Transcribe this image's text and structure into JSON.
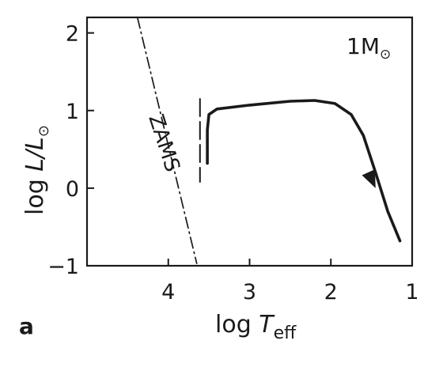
{
  "chart_data": {
    "type": "line",
    "panel_label": "a",
    "xlabel": {
      "prefix": "log ",
      "var": "T",
      "sub": "eff"
    },
    "ylabel": {
      "prefix": "log ",
      "var": "L/L",
      "sub": "⊙"
    },
    "xlim": [
      5,
      1
    ],
    "ylim": [
      -1,
      2.2
    ],
    "xticks": [
      4,
      3,
      2,
      1
    ],
    "yticks": [
      2,
      1,
      0,
      -1
    ],
    "xtick_labels": [
      "4",
      "3",
      "2",
      "1"
    ],
    "ytick_labels": [
      "2",
      "1",
      "0",
      "−1"
    ],
    "grid": false,
    "series": [
      {
        "style": "dash-dot",
        "color": "#1a1a1a",
        "x": [
          4.38,
          3.65
        ],
        "y": [
          2.2,
          -0.97
        ]
      },
      {
        "style": "dashed",
        "color": "#1a1a1a",
        "x": [
          3.61,
          3.61
        ],
        "y": [
          1.15,
          0.08
        ]
      },
      {
        "style": "solid",
        "color": "#1a1a1a",
        "arrow_at": [
          1.45,
          0.0
        ],
        "x": [
          3.52,
          3.52,
          3.5,
          3.4,
          3.0,
          2.5,
          2.2,
          1.95,
          1.75,
          1.6,
          1.45,
          1.3,
          1.15
        ],
        "y": [
          0.32,
          0.75,
          0.95,
          1.02,
          1.07,
          1.12,
          1.13,
          1.09,
          0.95,
          0.68,
          0.2,
          -0.3,
          -0.68
        ]
      }
    ],
    "annotations": {
      "zams": "ZAMS",
      "mass": {
        "value": "1M",
        "sub": "⊙"
      }
    }
  }
}
